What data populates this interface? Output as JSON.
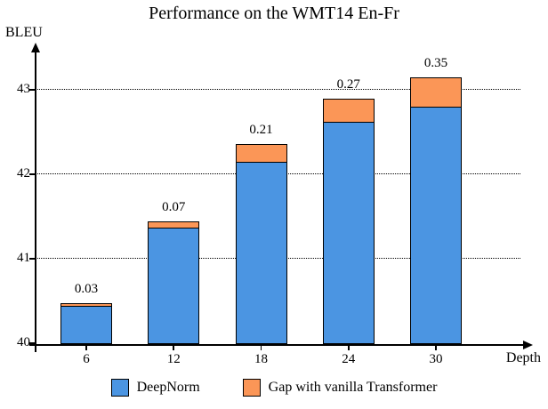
{
  "chart_data": {
    "type": "bar",
    "stacked": true,
    "title": "Performance on the WMT14 En-Fr",
    "ylabel": "BLEU",
    "xlabel": "Depth",
    "categories": [
      "6",
      "12",
      "18",
      "24",
      "30"
    ],
    "series": [
      {
        "name": "DeepNorm",
        "color": "#4b95e2",
        "values": [
          40.44,
          41.37,
          42.15,
          42.62,
          42.8
        ]
      },
      {
        "name": "Gap with vanilla Transformer",
        "color": "#fb9657",
        "values": [
          0.03,
          0.07,
          0.21,
          0.27,
          0.35
        ]
      }
    ],
    "bar_labels": [
      "0.03",
      "0.07",
      "0.21",
      "0.27",
      "0.35"
    ],
    "ylim": [
      40,
      43.45
    ],
    "yticks": [
      "40",
      "41",
      "42",
      "43"
    ],
    "gridlines": [
      41,
      42,
      43
    ],
    "grid_style": "dotted",
    "legend_position": "bottom"
  }
}
